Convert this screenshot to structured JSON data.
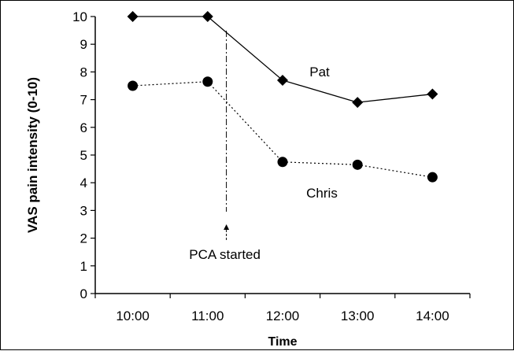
{
  "chart_data": {
    "type": "line",
    "xlabel": "Time",
    "ylabel": "VAS pain intensity (0-10)",
    "categories": [
      "10:00",
      "11:00",
      "12:00",
      "13:00",
      "14:00"
    ],
    "ylim": [
      0,
      10
    ],
    "yticks": [
      0,
      1,
      2,
      3,
      4,
      5,
      6,
      7,
      8,
      9,
      10
    ],
    "grid": false,
    "legend": "none",
    "series": [
      {
        "name": "Pat",
        "values": [
          10,
          10,
          7.7,
          6.9,
          7.2
        ],
        "marker": "diamond",
        "line_style": "solid",
        "color": "#000000"
      },
      {
        "name": "Chris",
        "values": [
          7.5,
          7.65,
          4.75,
          4.65,
          4.2
        ],
        "marker": "circle",
        "line_style": "dotted",
        "color": "#000000"
      }
    ],
    "annotations": [
      {
        "text": "PCA started",
        "x": "11:15"
      }
    ]
  }
}
